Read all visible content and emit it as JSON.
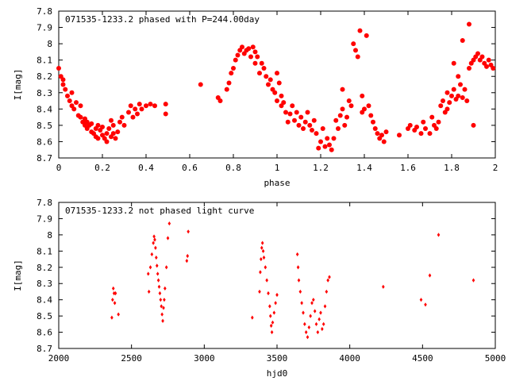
{
  "chart_data": [
    {
      "type": "scatter",
      "title": "071535-1233.2 phased with P=244.00day",
      "xlabel": "phase",
      "ylabel": "I[mag]",
      "xlim": [
        0,
        2
      ],
      "ylim": [
        8.7,
        7.8
      ],
      "y_inverted": true,
      "x_ticks": [
        "0",
        "0.2",
        "0.4",
        "0.6",
        "0.8",
        "1",
        "1.2",
        "1.4",
        "1.6",
        "1.8",
        "2"
      ],
      "y_ticks": [
        "7.8",
        "7.9",
        "8",
        "8.1",
        "8.2",
        "8.3",
        "8.4",
        "8.5",
        "8.6",
        "8.7"
      ],
      "marker": "filled-circle",
      "marker_color": "#ff0000",
      "points": [
        [
          0.0,
          8.15
        ],
        [
          0.01,
          8.2
        ],
        [
          0.02,
          8.25
        ],
        [
          0.02,
          8.22
        ],
        [
          0.03,
          8.28
        ],
        [
          0.04,
          8.32
        ],
        [
          0.05,
          8.35
        ],
        [
          0.06,
          8.38
        ],
        [
          0.06,
          8.3
        ],
        [
          0.07,
          8.4
        ],
        [
          0.08,
          8.36
        ],
        [
          0.09,
          8.44
        ],
        [
          0.1,
          8.38
        ],
        [
          0.1,
          8.45
        ],
        [
          0.11,
          8.48
        ],
        [
          0.12,
          8.5
        ],
        [
          0.12,
          8.46
        ],
        [
          0.13,
          8.52
        ],
        [
          0.13,
          8.48
        ],
        [
          0.14,
          8.5
        ],
        [
          0.15,
          8.54
        ],
        [
          0.15,
          8.49
        ],
        [
          0.16,
          8.55
        ],
        [
          0.17,
          8.52
        ],
        [
          0.17,
          8.57
        ],
        [
          0.18,
          8.5
        ],
        [
          0.18,
          8.58
        ],
        [
          0.19,
          8.53
        ],
        [
          0.2,
          8.56
        ],
        [
          0.2,
          8.51
        ],
        [
          0.21,
          8.58
        ],
        [
          0.22,
          8.55
        ],
        [
          0.22,
          8.6
        ],
        [
          0.23,
          8.52
        ],
        [
          0.24,
          8.57
        ],
        [
          0.24,
          8.47
        ],
        [
          0.25,
          8.55
        ],
        [
          0.25,
          8.5
        ],
        [
          0.26,
          8.58
        ],
        [
          0.27,
          8.54
        ],
        [
          0.28,
          8.48
        ],
        [
          0.29,
          8.45
        ],
        [
          0.3,
          8.5
        ],
        [
          0.32,
          8.42
        ],
        [
          0.33,
          8.38
        ],
        [
          0.34,
          8.45
        ],
        [
          0.35,
          8.4
        ],
        [
          0.36,
          8.43
        ],
        [
          0.37,
          8.37
        ],
        [
          0.38,
          8.4
        ],
        [
          0.4,
          8.38
        ],
        [
          0.42,
          8.37
        ],
        [
          0.44,
          8.38
        ],
        [
          0.49,
          8.37
        ],
        [
          0.49,
          8.43
        ],
        [
          0.65,
          8.25
        ],
        [
          0.73,
          8.33
        ],
        [
          0.74,
          8.35
        ],
        [
          0.77,
          8.28
        ],
        [
          0.78,
          8.24
        ],
        [
          0.79,
          8.18
        ],
        [
          0.8,
          8.15
        ],
        [
          0.81,
          8.1
        ],
        [
          0.82,
          8.07
        ],
        [
          0.83,
          8.04
        ],
        [
          0.84,
          8.02
        ],
        [
          0.85,
          8.06
        ],
        [
          0.86,
          8.04
        ],
        [
          0.87,
          8.03
        ],
        [
          0.88,
          8.08
        ],
        [
          0.89,
          8.02
        ],
        [
          0.9,
          8.05
        ],
        [
          0.9,
          8.12
        ],
        [
          0.91,
          8.08
        ],
        [
          0.92,
          8.18
        ],
        [
          0.93,
          8.12
        ],
        [
          0.94,
          8.15
        ],
        [
          0.95,
          8.2
        ],
        [
          0.96,
          8.25
        ],
        [
          0.97,
          8.22
        ],
        [
          0.98,
          8.28
        ],
        [
          0.99,
          8.3
        ],
        [
          1.0,
          8.35
        ],
        [
          1.0,
          8.18
        ],
        [
          1.01,
          8.24
        ],
        [
          1.02,
          8.38
        ],
        [
          1.02,
          8.32
        ],
        [
          1.03,
          8.36
        ],
        [
          1.04,
          8.42
        ],
        [
          1.05,
          8.48
        ],
        [
          1.06,
          8.43
        ],
        [
          1.07,
          8.38
        ],
        [
          1.08,
          8.47
        ],
        [
          1.09,
          8.42
        ],
        [
          1.1,
          8.5
        ],
        [
          1.11,
          8.45
        ],
        [
          1.12,
          8.52
        ],
        [
          1.13,
          8.48
        ],
        [
          1.14,
          8.42
        ],
        [
          1.15,
          8.5
        ],
        [
          1.16,
          8.53
        ],
        [
          1.17,
          8.47
        ],
        [
          1.18,
          8.55
        ],
        [
          1.19,
          8.64
        ],
        [
          1.2,
          8.6
        ],
        [
          1.21,
          8.52
        ],
        [
          1.22,
          8.63
        ],
        [
          1.23,
          8.58
        ],
        [
          1.24,
          8.62
        ],
        [
          1.25,
          8.65
        ],
        [
          1.26,
          8.58
        ],
        [
          1.27,
          8.47
        ],
        [
          1.28,
          8.52
        ],
        [
          1.29,
          8.44
        ],
        [
          1.3,
          8.4
        ],
        [
          1.3,
          8.28
        ],
        [
          1.31,
          8.5
        ],
        [
          1.32,
          8.45
        ],
        [
          1.33,
          8.35
        ],
        [
          1.34,
          8.38
        ],
        [
          1.35,
          8.0
        ],
        [
          1.36,
          8.04
        ],
        [
          1.37,
          8.08
        ],
        [
          1.38,
          7.92
        ],
        [
          1.39,
          8.42
        ],
        [
          1.39,
          8.32
        ],
        [
          1.4,
          8.4
        ],
        [
          1.41,
          7.95
        ],
        [
          1.42,
          8.38
        ],
        [
          1.43,
          8.44
        ],
        [
          1.44,
          8.48
        ],
        [
          1.45,
          8.52
        ],
        [
          1.46,
          8.55
        ],
        [
          1.47,
          8.58
        ],
        [
          1.48,
          8.56
        ],
        [
          1.49,
          8.6
        ],
        [
          1.5,
          8.54
        ],
        [
          1.56,
          8.56
        ],
        [
          1.6,
          8.52
        ],
        [
          1.61,
          8.5
        ],
        [
          1.63,
          8.53
        ],
        [
          1.64,
          8.51
        ],
        [
          1.66,
          8.55
        ],
        [
          1.67,
          8.48
        ],
        [
          1.68,
          8.52
        ],
        [
          1.7,
          8.55
        ],
        [
          1.71,
          8.45
        ],
        [
          1.72,
          8.5
        ],
        [
          1.73,
          8.52
        ],
        [
          1.74,
          8.48
        ],
        [
          1.75,
          8.38
        ],
        [
          1.76,
          8.35
        ],
        [
          1.77,
          8.42
        ],
        [
          1.78,
          8.3
        ],
        [
          1.78,
          8.4
        ],
        [
          1.79,
          8.36
        ],
        [
          1.8,
          8.32
        ],
        [
          1.81,
          8.28
        ],
        [
          1.81,
          8.12
        ],
        [
          1.82,
          8.34
        ],
        [
          1.83,
          8.2
        ],
        [
          1.83,
          8.32
        ],
        [
          1.84,
          8.25
        ],
        [
          1.85,
          8.33
        ],
        [
          1.85,
          7.98
        ],
        [
          1.86,
          8.28
        ],
        [
          1.87,
          8.35
        ],
        [
          1.88,
          8.15
        ],
        [
          1.88,
          7.88
        ],
        [
          1.89,
          8.12
        ],
        [
          1.9,
          8.1
        ],
        [
          1.9,
          8.5
        ],
        [
          1.91,
          8.08
        ],
        [
          1.92,
          8.06
        ],
        [
          1.93,
          8.1
        ],
        [
          1.94,
          8.08
        ],
        [
          1.95,
          8.12
        ],
        [
          1.96,
          8.14
        ],
        [
          1.97,
          8.1
        ],
        [
          1.98,
          8.13
        ],
        [
          1.99,
          8.15
        ]
      ]
    },
    {
      "type": "scatter",
      "title": "071535-1233.2 not phased light curve",
      "xlabel": "hjd0",
      "ylabel": "I[mag]",
      "xlim": [
        2000,
        5000
      ],
      "ylim": [
        8.7,
        7.8
      ],
      "y_inverted": true,
      "x_ticks": [
        "2000",
        "2500",
        "3000",
        "3500",
        "4000",
        "4500",
        "5000"
      ],
      "y_ticks": [
        "7.8",
        "7.9",
        "8",
        "8.1",
        "8.2",
        "8.3",
        "8.4",
        "8.5",
        "8.6",
        "8.7"
      ],
      "marker": "small-diamond",
      "marker_color": "#ff0000",
      "points": [
        [
          2365,
          8.51
        ],
        [
          2370,
          8.4
        ],
        [
          2375,
          8.33
        ],
        [
          2380,
          8.36
        ],
        [
          2385,
          8.42
        ],
        [
          2390,
          8.36
        ],
        [
          2410,
          8.49
        ],
        [
          2615,
          8.24
        ],
        [
          2620,
          8.35
        ],
        [
          2630,
          8.2
        ],
        [
          2640,
          8.12
        ],
        [
          2650,
          8.05
        ],
        [
          2655,
          8.01
        ],
        [
          2660,
          8.03
        ],
        [
          2665,
          8.08
        ],
        [
          2670,
          8.14
        ],
        [
          2675,
          8.19
        ],
        [
          2680,
          8.24
        ],
        [
          2685,
          8.28
        ],
        [
          2690,
          8.32
        ],
        [
          2695,
          8.36
        ],
        [
          2700,
          8.4
        ],
        [
          2705,
          8.44
        ],
        [
          2710,
          8.49
        ],
        [
          2715,
          8.53
        ],
        [
          2720,
          8.45
        ],
        [
          2725,
          8.4
        ],
        [
          2730,
          8.33
        ],
        [
          2740,
          8.2
        ],
        [
          2750,
          8.02
        ],
        [
          2760,
          7.93
        ],
        [
          2880,
          8.16
        ],
        [
          2885,
          8.13
        ],
        [
          2890,
          7.98
        ],
        [
          3330,
          8.51
        ],
        [
          3380,
          8.35
        ],
        [
          3385,
          8.23
        ],
        [
          3390,
          8.15
        ],
        [
          3395,
          8.08
        ],
        [
          3400,
          8.05
        ],
        [
          3405,
          8.1
        ],
        [
          3410,
          8.14
        ],
        [
          3420,
          8.2
        ],
        [
          3430,
          8.28
        ],
        [
          3440,
          8.36
        ],
        [
          3450,
          8.44
        ],
        [
          3455,
          8.5
        ],
        [
          3460,
          8.56
        ],
        [
          3465,
          8.6
        ],
        [
          3470,
          8.54
        ],
        [
          3480,
          8.48
        ],
        [
          3490,
          8.42
        ],
        [
          3500,
          8.37
        ],
        [
          3640,
          8.12
        ],
        [
          3645,
          8.2
        ],
        [
          3650,
          8.28
        ],
        [
          3660,
          8.35
        ],
        [
          3670,
          8.42
        ],
        [
          3680,
          8.48
        ],
        [
          3690,
          8.55
        ],
        [
          3700,
          8.6
        ],
        [
          3710,
          8.63
        ],
        [
          3720,
          8.57
        ],
        [
          3730,
          8.5
        ],
        [
          3740,
          8.42
        ],
        [
          3750,
          8.4
        ],
        [
          3760,
          8.47
        ],
        [
          3770,
          8.55
        ],
        [
          3780,
          8.6
        ],
        [
          3790,
          8.52
        ],
        [
          3800,
          8.48
        ],
        [
          3810,
          8.58
        ],
        [
          3820,
          8.55
        ],
        [
          3830,
          8.44
        ],
        [
          3840,
          8.35
        ],
        [
          3850,
          8.28
        ],
        [
          3860,
          8.26
        ],
        [
          4230,
          8.32
        ],
        [
          4490,
          8.4
        ],
        [
          4520,
          8.43
        ],
        [
          4550,
          8.25
        ],
        [
          4610,
          8.0
        ],
        [
          4850,
          8.28
        ]
      ]
    }
  ]
}
